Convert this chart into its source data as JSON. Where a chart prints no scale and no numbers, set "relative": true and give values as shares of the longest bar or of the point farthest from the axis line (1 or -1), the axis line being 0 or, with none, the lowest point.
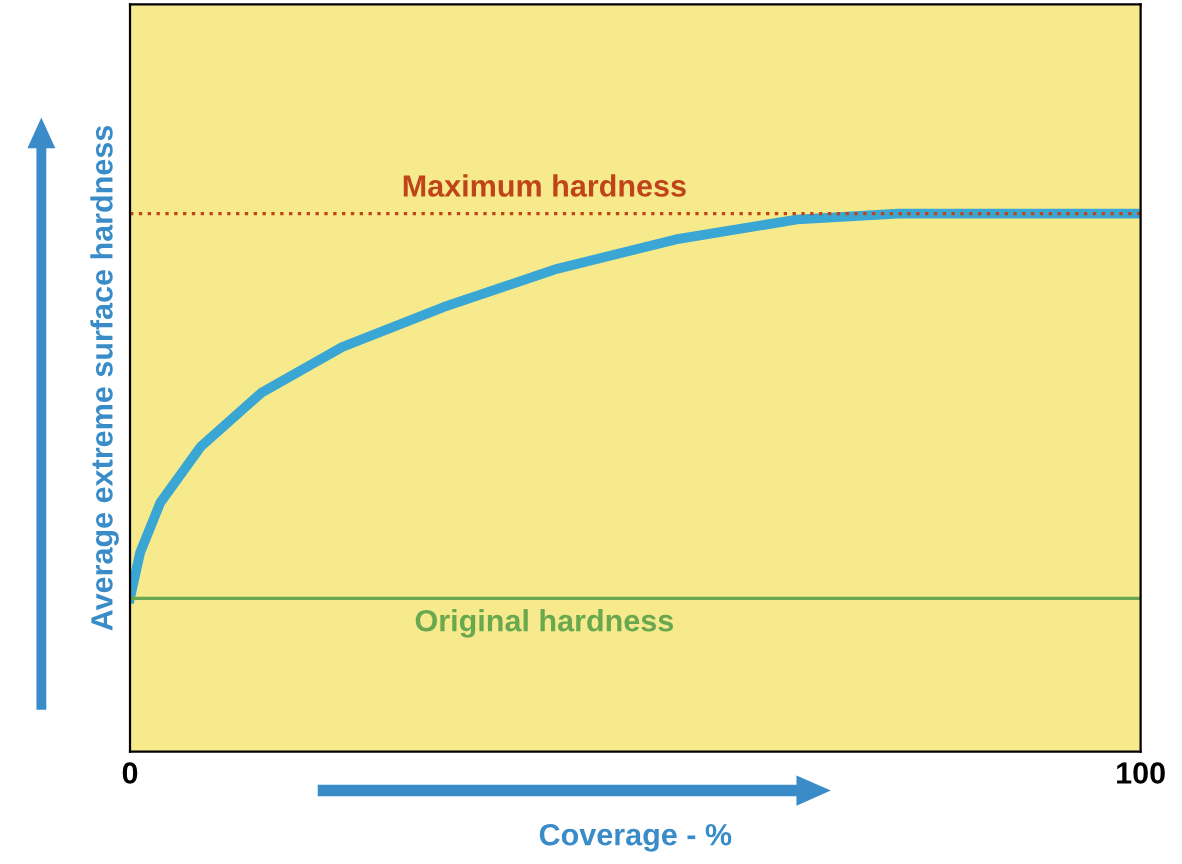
{
  "chart_data": {
    "type": "line",
    "relative": true,
    "xlabel": "Coverage - %",
    "ylabel": "Average extreme surface hardness",
    "x": [
      0,
      1,
      3,
      7,
      13,
      21,
      31,
      42,
      54,
      66,
      76,
      88,
      100
    ],
    "series": [
      {
        "color": "#3aa6d4",
        "values": [
          0.285,
          0.37,
          0.463,
          0.567,
          0.667,
          0.752,
          0.826,
          0.896,
          0.952,
          0.989,
          1.0,
          1.0,
          1.0
        ]
      }
    ],
    "xlim": [
      0,
      100
    ],
    "xticks": [
      0,
      100
    ],
    "ref_lines": [
      {
        "axis": "y",
        "value": 1.0,
        "label": "Maximum hardness",
        "color": "#c0441a",
        "line_style": "dotted"
      },
      {
        "axis": "y",
        "value": 0.285,
        "label": "Original hardness",
        "color": "#6aa84f",
        "line_style": "solid"
      }
    ],
    "grid": false,
    "legend": false
  }
}
